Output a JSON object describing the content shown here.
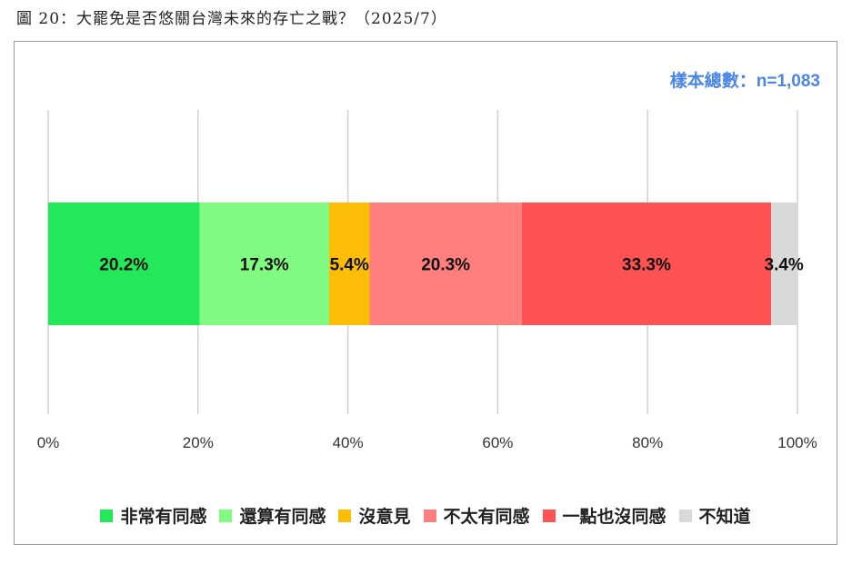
{
  "figure_title": "圖 20：大罷免是否悠關台灣未來的存亡之戰？（2025/7）",
  "sample_label": "樣本總數：n=1,083",
  "chart_data": {
    "type": "bar",
    "orientation": "horizontal",
    "stacked": true,
    "title": "",
    "xlim": [
      0,
      100
    ],
    "x_tick_labels": [
      "0%",
      "20%",
      "40%",
      "60%",
      "80%",
      "100%"
    ],
    "x_ticks": [
      0,
      20,
      40,
      60,
      80,
      100
    ],
    "grid": true,
    "legend_position": "bottom",
    "series": [
      {
        "name": "非常有同感",
        "value": 20.2,
        "label": "20.2%",
        "color": "#22e85a"
      },
      {
        "name": "還算有同感",
        "value": 17.3,
        "label": "17.3%",
        "color": "#80fa80"
      },
      {
        "name": "沒意見",
        "value": 5.4,
        "label": "5.4%",
        "color": "#fbbd05"
      },
      {
        "name": "不太有同感",
        "value": 20.3,
        "label": "20.3%",
        "color": "#ff7f7f"
      },
      {
        "name": "一點也沒同感",
        "value": 33.3,
        "label": "33.3%",
        "color": "#ff5252"
      },
      {
        "name": "不知道",
        "value": 3.4,
        "label": "3.4%",
        "color": "#d9d9d9"
      }
    ]
  }
}
